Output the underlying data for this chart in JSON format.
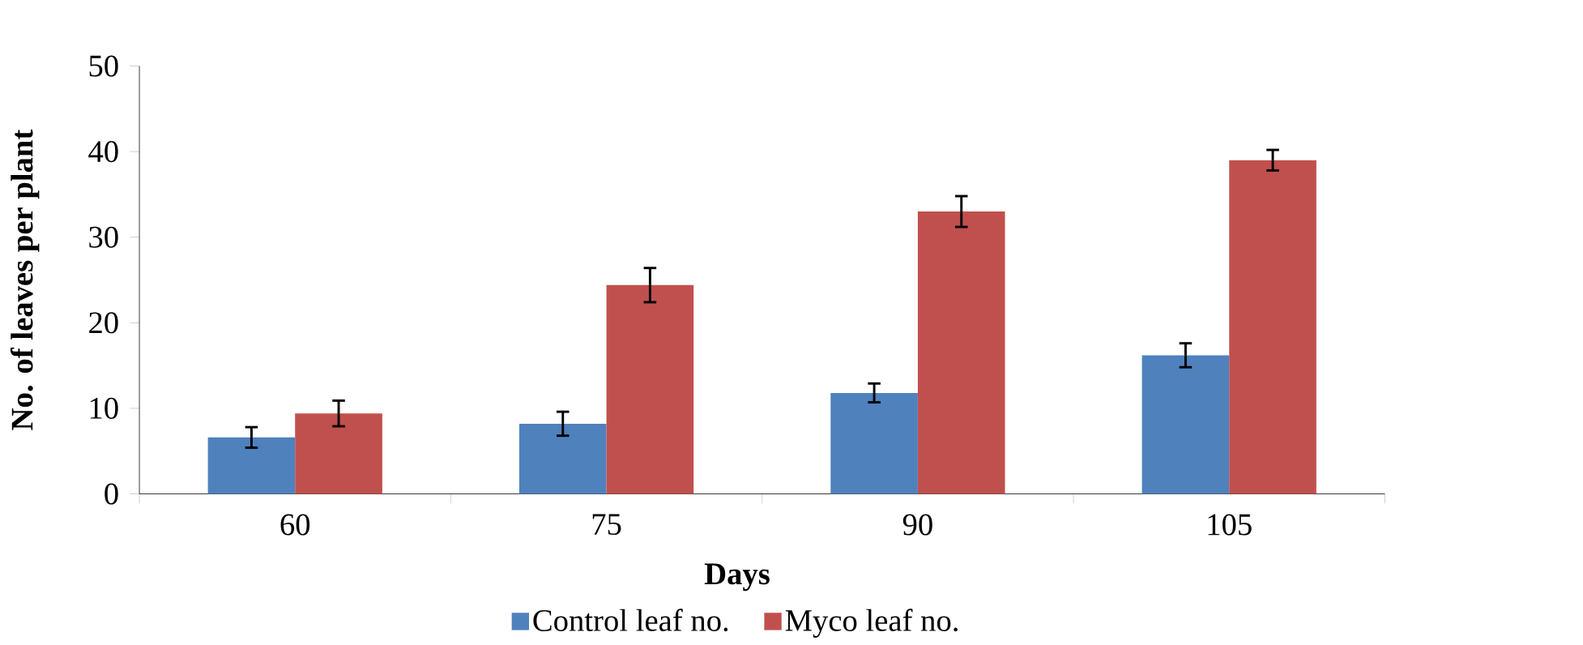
{
  "chart_data": {
    "type": "bar",
    "xlabel": "Days",
    "ylabel": "No. of leaves per plant",
    "categories": [
      "60",
      "75",
      "90",
      "105"
    ],
    "series": [
      {
        "name": "Control leaf no.",
        "color": "#4f81bd",
        "values": [
          6.6,
          8.2,
          11.8,
          16.2
        ],
        "errors": [
          1.2,
          1.4,
          1.1,
          1.4
        ]
      },
      {
        "name": "Myco leaf no.",
        "color": "#c0504d",
        "values": [
          9.4,
          24.4,
          33.0,
          39.0
        ],
        "errors": [
          1.5,
          2.0,
          1.8,
          1.2
        ]
      }
    ],
    "ylim": [
      0,
      50
    ],
    "yticks": [
      0,
      10,
      20,
      30,
      40,
      50
    ],
    "legend": "bottom",
    "grid": false
  }
}
